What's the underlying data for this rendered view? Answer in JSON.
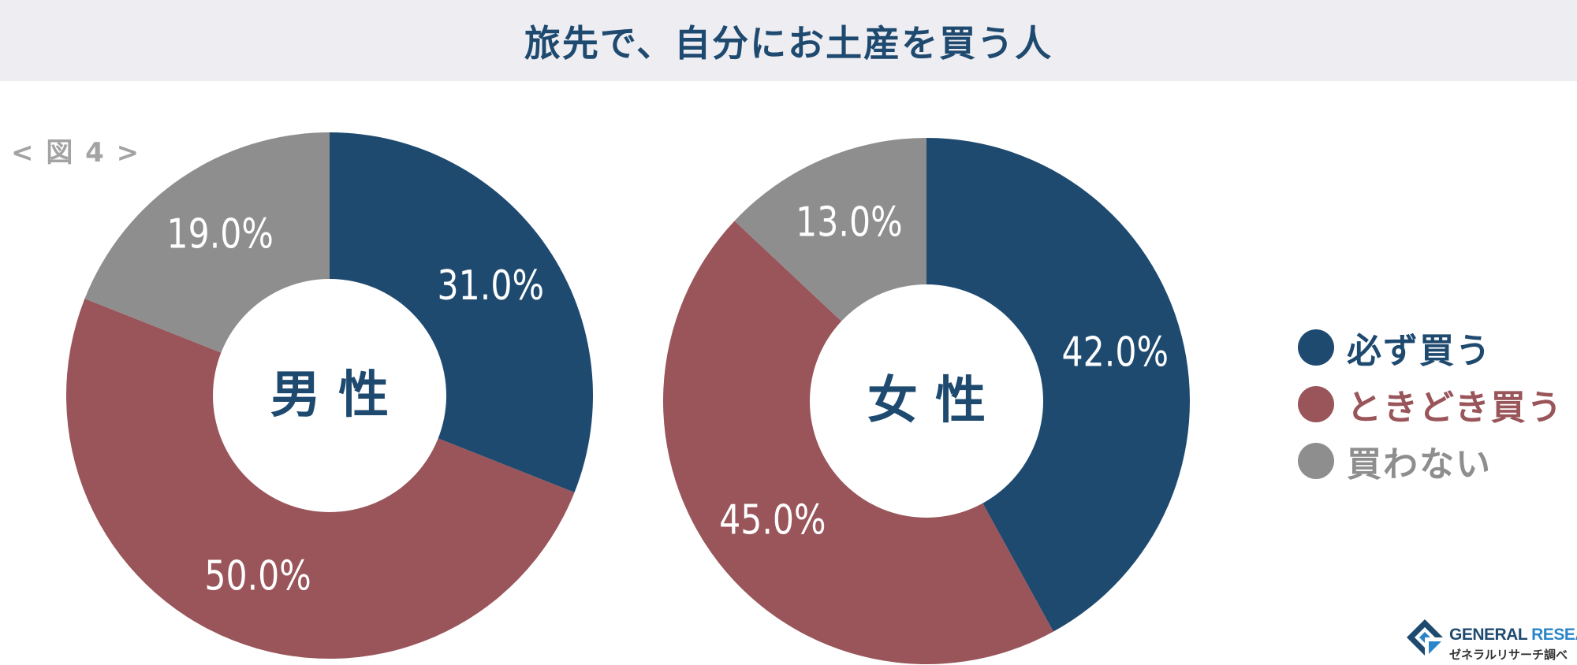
{
  "title": "旅先で、自分にお土産を買う人",
  "figure_label": "< 図 4 >",
  "colors": {
    "always": "#1f4a70",
    "sometimes": "#99555a",
    "never": "#8e8e8e",
    "title_bg": "#eeeef2"
  },
  "chart_data": [
    {
      "type": "pie",
      "center_label": "男 性",
      "categories": [
        "必ず買う",
        "ときどき買う",
        "買わない"
      ],
      "values": [
        31.0,
        50.0,
        19.0
      ],
      "value_labels": [
        "31.0%",
        "50.0%",
        "19.0%"
      ]
    },
    {
      "type": "pie",
      "center_label": "女 性",
      "categories": [
        "必ず買う",
        "ときどき買う",
        "買わない"
      ],
      "values": [
        42.0,
        45.0,
        13.0
      ],
      "value_labels": [
        "42.0%",
        "45.0%",
        "13.0%"
      ]
    }
  ],
  "legend": [
    {
      "label": "必ず買う",
      "color": "#1f4a70"
    },
    {
      "label": "ときどき買う",
      "color": "#99555a"
    },
    {
      "label": "買わない",
      "color": "#8e8e8e"
    }
  ],
  "logo": {
    "name_part1": "GENERAL",
    "name_part2": "RESEARCH",
    "subtitle": "ゼネラルリサーチ調べ"
  }
}
